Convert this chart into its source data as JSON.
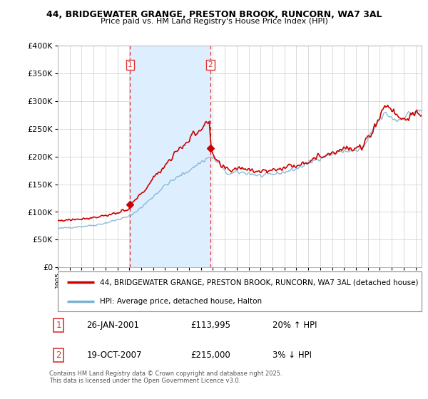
{
  "title1": "44, BRIDGEWATER GRANGE, PRESTON BROOK, RUNCORN, WA7 3AL",
  "title2": "Price paid vs. HM Land Registry's House Price Index (HPI)",
  "legend_label1": "44, BRIDGEWATER GRANGE, PRESTON BROOK, RUNCORN, WA7 3AL (detached house)",
  "legend_label2": "HPI: Average price, detached house, Halton",
  "annotation1_date": "26-JAN-2001",
  "annotation1_price": "£113,995",
  "annotation1_hpi": "20% ↑ HPI",
  "annotation2_date": "19-OCT-2007",
  "annotation2_price": "£215,000",
  "annotation2_hpi": "3% ↓ HPI",
  "footer": "Contains HM Land Registry data © Crown copyright and database right 2025.\nThis data is licensed under the Open Government Licence v3.0.",
  "vline1_x": 2001.07,
  "vline2_x": 2007.8,
  "sale1_x": 2001.07,
  "sale1_y": 113995,
  "sale2_x": 2007.8,
  "sale2_y": 215000,
  "color_price": "#cc0000",
  "color_hpi": "#7fb3d3",
  "color_shade": "#ddeeff",
  "color_vline": "#dd3333",
  "ylim": [
    0,
    400000
  ],
  "xlim_start": 1995.0,
  "xlim_end": 2025.5,
  "yticks": [
    0,
    50000,
    100000,
    150000,
    200000,
    250000,
    300000,
    350000,
    400000
  ]
}
